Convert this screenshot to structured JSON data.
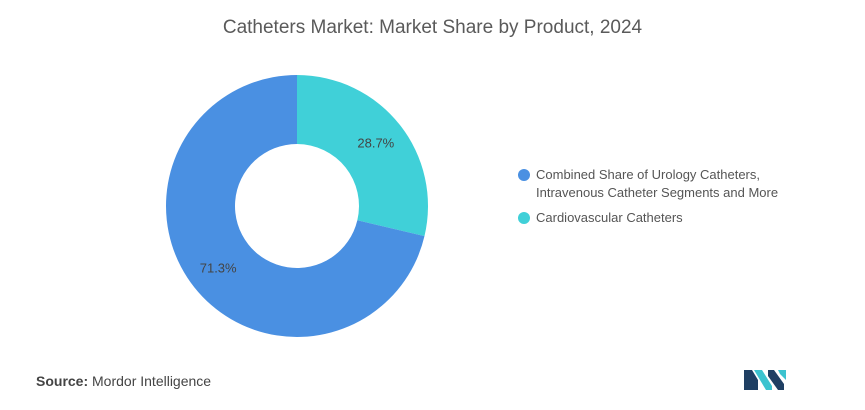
{
  "chart_data": {
    "type": "pie",
    "title": "Catheters Market: Market Share by Product, 2024",
    "series": [
      {
        "name": "Cardiovascular Catheters",
        "value": 28.7,
        "label": "28.7%",
        "color": "#40d0d8"
      },
      {
        "name": "Combined Share of Urology Catheters, Intravenous Catheter Segments and More",
        "value": 71.3,
        "label": "71.3%",
        "color": "#4a90e2"
      }
    ],
    "legend": {
      "placement": "right",
      "items": [
        {
          "lines": [
            "Combined Share of Urology Catheters,",
            "Intravenous Catheter Segments and More"
          ],
          "color": "#4a90e2"
        },
        {
          "lines": [
            "Cardiovascular Catheters"
          ],
          "color": "#40d0d8"
        }
      ]
    }
  },
  "footer": {
    "source_label": "Source:",
    "source_text": "Mordor Intelligence",
    "logo_color_dark": "#1f3f63",
    "logo_color_light": "#3cc3cf"
  }
}
